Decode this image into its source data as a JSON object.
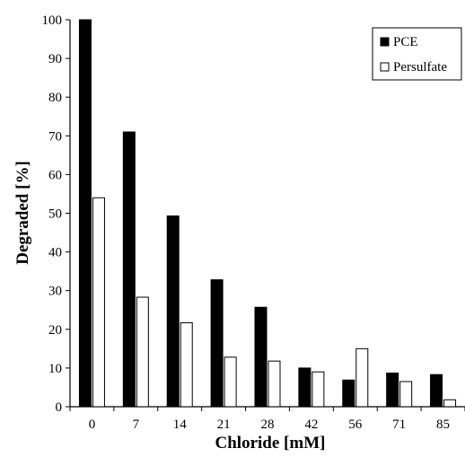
{
  "chart_data": {
    "type": "bar",
    "categories": [
      "0",
      "7",
      "14",
      "21",
      "28",
      "42",
      "56",
      "71",
      "85"
    ],
    "series": [
      {
        "name": "PCE",
        "values": [
          100,
          71,
          49.3,
          32.8,
          25.7,
          10,
          6.9,
          8.7,
          8.3
        ],
        "color": "#000000"
      },
      {
        "name": "Persulfate",
        "values": [
          54,
          28.3,
          21.7,
          12.8,
          11.8,
          9,
          15,
          6.5,
          1.8
        ],
        "color": "#ffffff"
      }
    ],
    "xlabel": "Chloride [mM]",
    "ylabel": "Degraded [%]",
    "ylim": [
      0,
      100
    ],
    "yticks": [
      "0",
      "10",
      "20",
      "30",
      "40",
      "50",
      "60",
      "70",
      "80",
      "90",
      "100"
    ],
    "grid": false,
    "legend_position": "top-right"
  }
}
